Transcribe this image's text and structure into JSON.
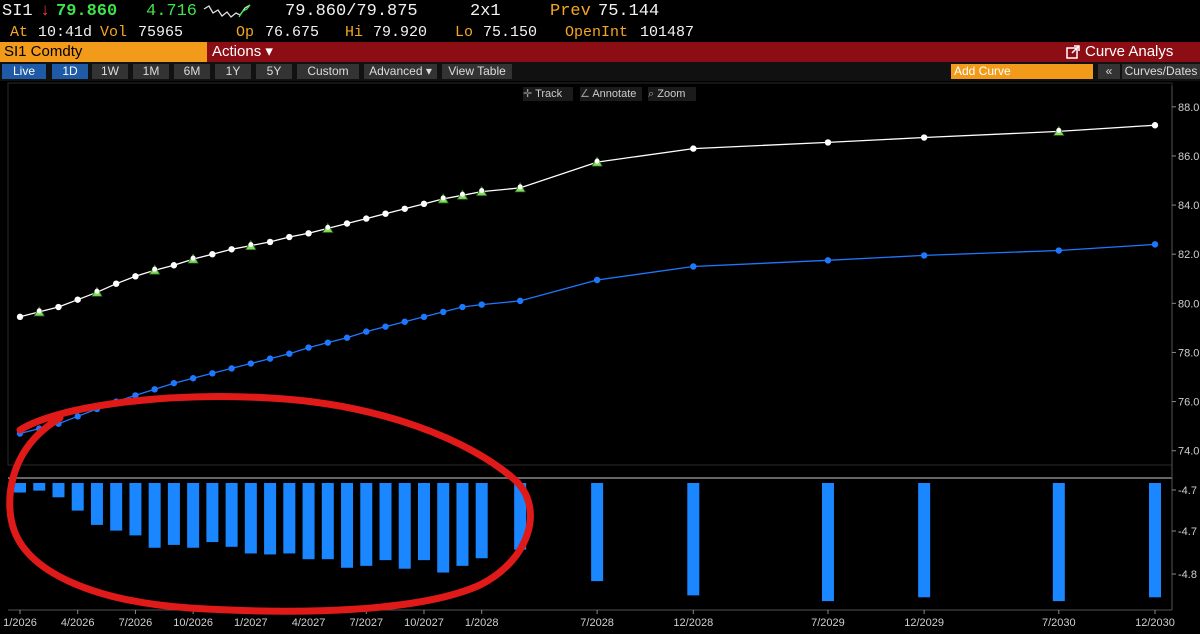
{
  "header": {
    "ticker": "SI1",
    "arrow": "↓",
    "last": "79.860",
    "change": "4.716",
    "bid_ask": "79.860/79.875",
    "size": "2x1",
    "prev_label": "Prev",
    "prev": "75.144",
    "at_label": "At",
    "time": "10:41d",
    "vol_label": "Vol",
    "vol": "75965",
    "op_label": "Op",
    "op": "76.675",
    "hi_label": "Hi",
    "hi": "79.920",
    "lo_label": "Lo",
    "lo": "75.150",
    "oi_label": "OpenInt",
    "oi": "101487"
  },
  "security": "SI1 Comdty",
  "actions_label": "Actions ▾",
  "curve_title": "Curve Analys",
  "toolbar": {
    "buttons": [
      "Live",
      "1D",
      "1W",
      "1M",
      "6M",
      "1Y",
      "5Y",
      "Custom"
    ],
    "advanced": "Advanced ▾",
    "view_table": "View Table",
    "add_curve_placeholder": "Add Curve",
    "collapse": "«",
    "curves_dates": "Curves/Dates"
  },
  "chart_tools": {
    "track": "Track",
    "annotate": "Annotate",
    "zoom": "Zoom"
  },
  "colors": {
    "upper_curve": "#ffffff",
    "lower_curve": "#1e78ff",
    "bars": "#1a86ff",
    "accent_orange": "#f29a1a",
    "title_bar": "#8c0d14",
    "highlight_marker": "#7fdc5a",
    "annotation_circle": "#e01919"
  },
  "chart_data": [
    {
      "type": "line",
      "x": [
        "1/2026",
        "2/2026",
        "3/2026",
        "4/2026",
        "5/2026",
        "6/2026",
        "7/2026",
        "8/2026",
        "9/2026",
        "10/2026",
        "11/2026",
        "12/2026",
        "1/2027",
        "2/2027",
        "3/2027",
        "4/2027",
        "5/2027",
        "6/2027",
        "7/2027",
        "8/2027",
        "9/2027",
        "10/2027",
        "11/2027",
        "12/2027",
        "1/2028",
        "3/2028",
        "7/2028",
        "12/2028",
        "7/2029",
        "12/2029",
        "7/2030",
        "12/2030"
      ],
      "x_tick_labels": [
        "1/2026",
        "4/2026",
        "7/2026",
        "10/2026",
        "1/2027",
        "4/2027",
        "7/2027",
        "10/2027",
        "1/2028",
        "7/2028",
        "12/2028",
        "7/2029",
        "12/2029",
        "7/2030",
        "12/2030"
      ],
      "series": [
        {
          "values": [
            79.45,
            79.65,
            79.85,
            80.15,
            80.45,
            80.8,
            81.1,
            81.35,
            81.55,
            81.8,
            82.0,
            82.2,
            82.35,
            82.5,
            82.7,
            82.85,
            83.05,
            83.25,
            83.45,
            83.65,
            83.85,
            84.05,
            84.25,
            84.4,
            84.55,
            84.7,
            85.75,
            86.3,
            86.55,
            86.75,
            87.0,
            87.25
          ],
          "highlighted_points": [
            1,
            4,
            7,
            9,
            12,
            16,
            22,
            23,
            24,
            25,
            26,
            30
          ]
        },
        {
          "values": [
            74.7,
            74.9,
            75.1,
            75.4,
            75.7,
            76.0,
            76.25,
            76.5,
            76.75,
            76.95,
            77.15,
            77.35,
            77.55,
            77.75,
            77.95,
            78.2,
            78.4,
            78.6,
            78.85,
            79.05,
            79.25,
            79.45,
            79.65,
            79.85,
            79.95,
            80.1,
            80.95,
            81.5,
            81.75,
            81.95,
            82.15,
            82.4
          ]
        }
      ],
      "y_tick_labels": [
        "74.0",
        "76.0",
        "78.0",
        "80.0",
        "82.0",
        "84.0",
        "86.0",
        "88.0"
      ],
      "ylim": [
        73.5,
        88.4
      ]
    },
    {
      "type": "bar",
      "x": [
        "1/2026",
        "2/2026",
        "3/2026",
        "4/2026",
        "5/2026",
        "6/2026",
        "7/2026",
        "8/2026",
        "9/2026",
        "10/2026",
        "11/2026",
        "12/2026",
        "1/2027",
        "2/2027",
        "3/2027",
        "4/2027",
        "5/2027",
        "6/2027",
        "7/2027",
        "8/2027",
        "9/2027",
        "10/2027",
        "11/2027",
        "12/2027",
        "1/2028",
        "3/2028",
        "7/2028",
        "12/2028",
        "7/2029",
        "12/2029",
        "7/2030",
        "12/2030"
      ],
      "values": [
        -4.729,
        -4.727,
        -4.734,
        -4.748,
        -4.763,
        -4.769,
        -4.774,
        -4.787,
        -4.784,
        -4.787,
        -4.781,
        -4.786,
        -4.793,
        -4.794,
        -4.793,
        -4.799,
        -4.799,
        -4.808,
        -4.806,
        -4.8,
        -4.809,
        -4.8,
        -4.813,
        -4.806,
        -4.798,
        -4.789,
        -4.822,
        -4.837,
        -4.843,
        -4.839,
        -4.843,
        -4.839
      ],
      "y_tick_labels": [
        "-4.7",
        "-4.7",
        "-4.8"
      ],
      "ylim": [
        -4.845,
        -4.719
      ]
    }
  ]
}
